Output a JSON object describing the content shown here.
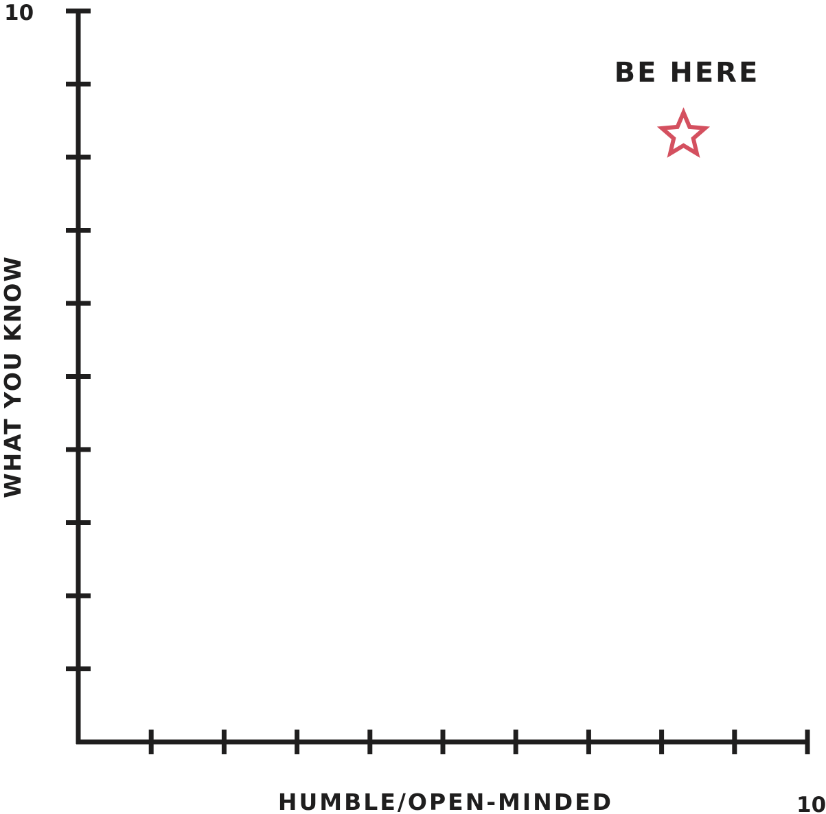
{
  "chart_data": {
    "type": "scatter",
    "title": "",
    "xlabel": "HUMBLE/OPEN-MINDED",
    "ylabel": "WHAT YOU KNOW",
    "xlim": [
      0,
      10
    ],
    "ylim": [
      0,
      10
    ],
    "x_max_label": "10",
    "y_max_label": "10",
    "x_ticks": [
      1,
      2,
      3,
      4,
      5,
      6,
      7,
      8,
      9,
      10
    ],
    "y_ticks": [
      1,
      2,
      3,
      4,
      5,
      6,
      7,
      8,
      9,
      10
    ],
    "grid": false,
    "points": [
      {
        "x": 8.3,
        "y": 8.3,
        "marker": "star-outline",
        "label": "BE HERE"
      }
    ],
    "colors": {
      "axis": "#1f1e1e",
      "marker": "#d4505f"
    }
  }
}
